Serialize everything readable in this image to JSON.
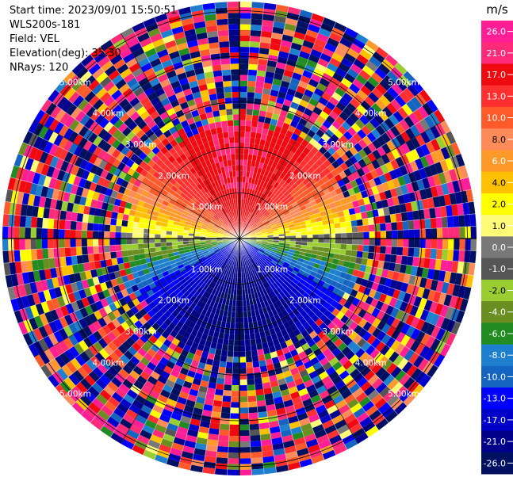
{
  "info": {
    "start_time": "Start time: 2023/09/01 15:50:51",
    "station": "WLS200s-181",
    "field": "Field: VEL",
    "elevation": "Elevation(deg): 35.30",
    "nrays": "NRays: 120"
  },
  "chart_data": {
    "type": "heatmap",
    "projection": "polar-ppi",
    "field": "VEL",
    "unit": "m/s",
    "nrays": 120,
    "elevation_deg": 35.3,
    "range_rings_km": [
      1.0,
      2.0,
      3.0,
      4.0,
      5.0
    ],
    "max_range_km": 5.2,
    "ring_labels": [
      "1.00km",
      "2.00km",
      "3.00km",
      "4.00km",
      "5.00km"
    ],
    "colorbar": {
      "unit": "m/s",
      "ticks": [
        "26.0",
        "21.0",
        "17.0",
        "13.0",
        "10.0",
        "8.0",
        "6.0",
        "4.0",
        "2.0",
        "1.0",
        "0.0",
        "-1.0",
        "-2.0",
        "-4.0",
        "-6.0",
        "-8.0",
        "-10.0",
        "-13.0",
        "-17.0",
        "-21.0",
        "-26.0",
        "-30.0"
      ],
      "colors": [
        "#ff1e96",
        "#ff2a78",
        "#ee0a10",
        "#ff3030",
        "#ff5a2a",
        "#ff8a5a",
        "#ff9a2a",
        "#ffc000",
        "#ffff00",
        "#fffa78",
        "#787878",
        "#555555",
        "#9acd32",
        "#6b8e23",
        "#228b22",
        "#1e7fcf",
        "#1565c0",
        "#0000ff",
        "#0000c8",
        "#00008b",
        "#001060"
      ],
      "boundaries": [
        30,
        26,
        21,
        17,
        13,
        10,
        8,
        6,
        4,
        2,
        1,
        0,
        -1,
        -2,
        -4,
        -6,
        -8,
        -10,
        -13,
        -17,
        -21,
        -26,
        -30
      ]
    },
    "pattern": {
      "coherent_range_km": [
        0.0,
        2.6
      ],
      "north_half_sign": "positive",
      "south_half_sign": "negative",
      "max_abs_velocity": 21,
      "noise_beyond_km": 2.6
    }
  }
}
